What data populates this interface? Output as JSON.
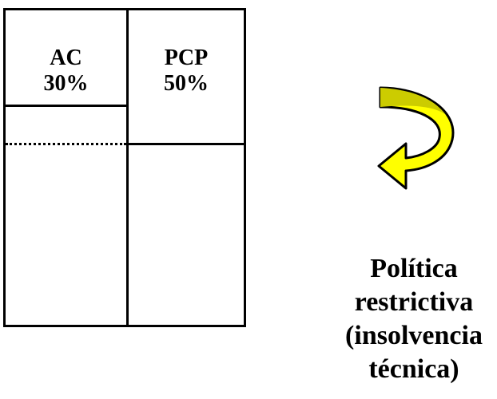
{
  "balance_sheet": {
    "ac": {
      "label": "AC",
      "value": "30%"
    },
    "pcp": {
      "label": "PCP",
      "value": "50%"
    }
  },
  "arrow": {
    "icon": "curved-arrow-icon",
    "fill": "#ffff00",
    "stroke": "#000000"
  },
  "caption": {
    "line1": "Política",
    "line2": "restrictiva",
    "line3": "(insolvencia",
    "line4": "técnica)"
  }
}
